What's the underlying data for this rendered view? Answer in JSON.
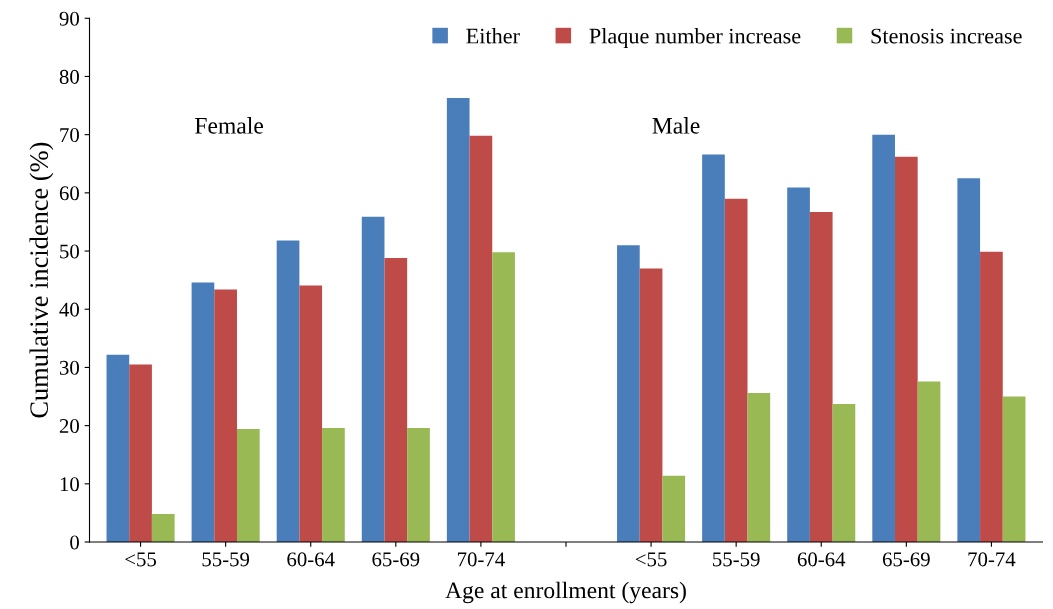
{
  "chart_data": {
    "type": "bar",
    "xlabel": "Age at enrollment (years)",
    "ylabel": "Cumulative incidence (%)",
    "categories": [
      "<55",
      "55-59",
      "60-64",
      "65-69",
      "70-74",
      null,
      "<55",
      "55-59",
      "60-64",
      "65-69",
      "70-74"
    ],
    "series": [
      {
        "name": "Either",
        "color": "#4a7ebb",
        "values": [
          32.2,
          44.6,
          51.8,
          55.9,
          76.3,
          null,
          51,
          66.6,
          60.9,
          70,
          62.5
        ]
      },
      {
        "name": "Plaque number increase",
        "color": "#be4b48",
        "values": [
          30.5,
          43.4,
          44.1,
          48.8,
          69.8,
          null,
          47,
          59,
          56.7,
          66.2,
          49.9
        ]
      },
      {
        "name": "Stenosis increase",
        "color": "#98b954",
        "values": [
          4.8,
          19.4,
          19.6,
          19.6,
          49.8,
          null,
          11.4,
          25.6,
          23.7,
          27.6,
          25
        ]
      }
    ],
    "ylim": [
      0,
      90
    ],
    "yticks": [
      0,
      10,
      20,
      30,
      40,
      50,
      60,
      70,
      80,
      90
    ],
    "annotations": [
      "Female",
      "Male"
    ],
    "legend": "top right",
    "grid": false
  }
}
